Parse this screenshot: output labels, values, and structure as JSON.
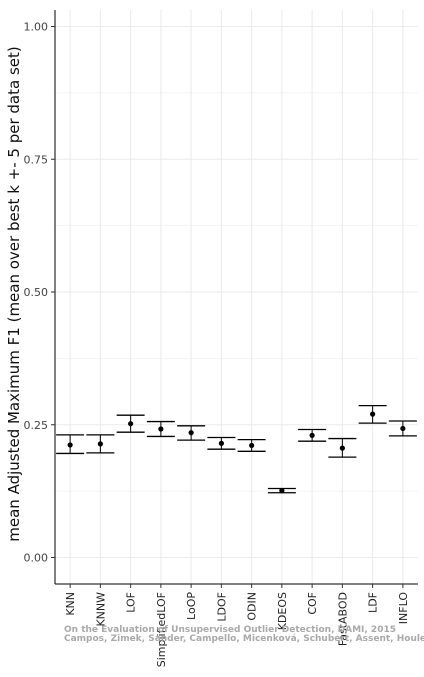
{
  "chart_data": {
    "type": "scatter",
    "subtype": "point-with-errorbars",
    "title": "",
    "xlabel": "",
    "ylabel": "mean Adjusted Maximum F1 (mean over best k +- 5 per data set)",
    "ylim": [
      0.0,
      1.0
    ],
    "yticks": [
      0.0,
      0.25,
      0.5,
      0.75,
      1.0
    ],
    "ytick_labels": [
      "0.00",
      "0.25",
      "0.50",
      "0.75",
      "1.00"
    ],
    "grid": true,
    "categories": [
      "KNN",
      "KNNW",
      "LOF",
      "SimplifiedLOF",
      "LoOP",
      "LDOF",
      "ODIN",
      "KDEOS",
      "COF",
      "FastABOD",
      "LDF",
      "INFLO"
    ],
    "series": [
      {
        "mean": [
          0.212,
          0.214,
          0.252,
          0.242,
          0.235,
          0.215,
          0.211,
          0.126,
          0.23,
          0.206,
          0.27,
          0.243
        ],
        "upper": [
          0.231,
          0.231,
          0.268,
          0.256,
          0.248,
          0.226,
          0.222,
          0.13,
          0.241,
          0.224,
          0.286,
          0.257
        ],
        "lower": [
          0.196,
          0.197,
          0.236,
          0.228,
          0.221,
          0.204,
          0.2,
          0.122,
          0.219,
          0.189,
          0.253,
          0.229
        ]
      }
    ],
    "colors": {
      "point": "#000000",
      "errorbar": "#000000",
      "grid": "#ebebeb",
      "axis": "#000000",
      "background": "#ffffff"
    }
  },
  "watermark": {
    "line1": "On the Evaluation of Unsupervised Outlier Detection, DAMI, 2015",
    "line2": "Campos, Zimek, Sander, Campello, Micenková, Schubert, Assent, Houle"
  }
}
